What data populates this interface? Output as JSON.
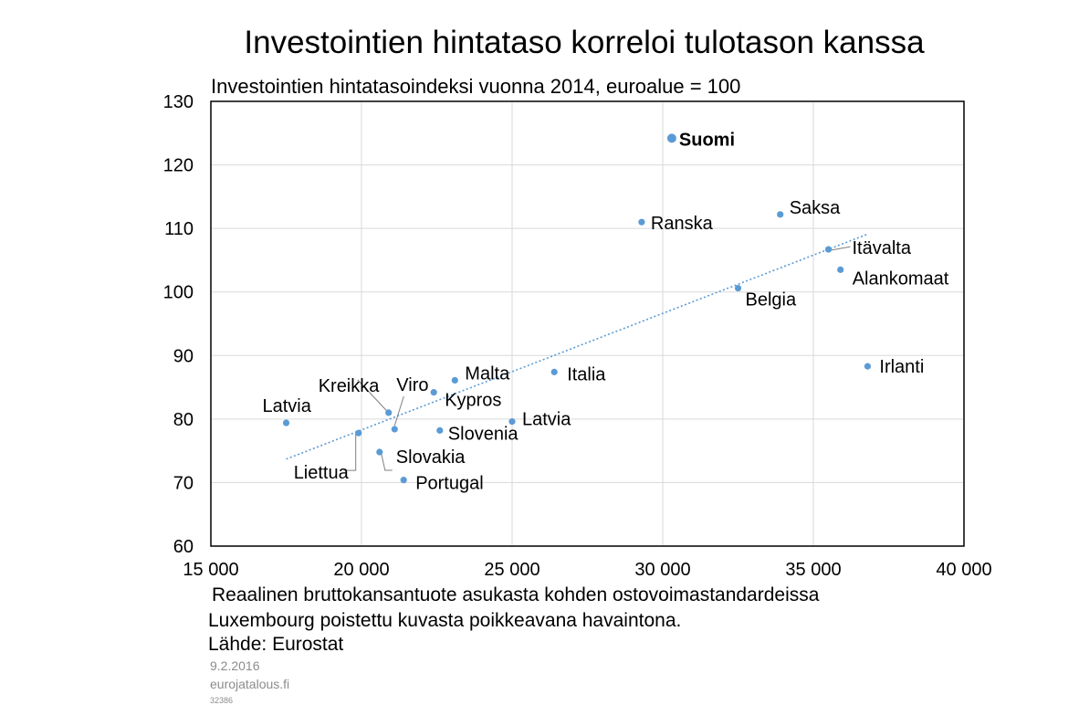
{
  "chart_data": {
    "type": "scatter",
    "title": "Investointien hintataso korreloi tulotason kanssa",
    "subtitle": "Investointien hintatasoindeksi vuonna 2014, euroalue = 100",
    "xlabel": "Reaalinen bruttokansantuote asukasta kohden ostovoimastandardeissa",
    "ylabel": "",
    "xlim": [
      15000,
      40000
    ],
    "ylim": [
      60,
      130
    ],
    "x_ticks": [
      15000,
      20000,
      25000,
      30000,
      35000,
      40000
    ],
    "x_tick_labels": [
      "15 000",
      "20 000",
      "25 000",
      "30 000",
      "35 000",
      "40 000"
    ],
    "y_ticks": [
      60,
      70,
      80,
      90,
      100,
      110,
      120,
      130
    ],
    "y_tick_labels": [
      "60",
      "70",
      "80",
      "90",
      "100",
      "110",
      "120",
      "130"
    ],
    "grid": true,
    "legend": "none",
    "point_color": "#5B9BD5",
    "trendline_color": "#5B9BD5",
    "points": [
      {
        "label": "Latvia",
        "x": 17500,
        "y": 79.4,
        "highlight": false
      },
      {
        "label": "Liettua",
        "x": 19900,
        "y": 77.8,
        "highlight": false
      },
      {
        "label": "Kreikka",
        "x": 20900,
        "y": 81.0,
        "highlight": false
      },
      {
        "label": "Viro",
        "x": 21100,
        "y": 78.4,
        "highlight": false
      },
      {
        "label": "Slovakia",
        "x": 20600,
        "y": 74.8,
        "highlight": false
      },
      {
        "label": "Portugal",
        "x": 21400,
        "y": 70.4,
        "highlight": false
      },
      {
        "label": "Kypros",
        "x": 22400,
        "y": 84.2,
        "highlight": false
      },
      {
        "label": "Malta",
        "x": 23100,
        "y": 86.1,
        "highlight": false
      },
      {
        "label": "Slovenia",
        "x": 22600,
        "y": 78.2,
        "highlight": false
      },
      {
        "label": "Latvia",
        "x": 25000,
        "y": 79.6,
        "highlight": false
      },
      {
        "label": "Italia",
        "x": 26400,
        "y": 87.4,
        "highlight": false
      },
      {
        "label": "Ranska",
        "x": 29300,
        "y": 111.0,
        "highlight": false
      },
      {
        "label": "Suomi",
        "x": 30300,
        "y": 124.2,
        "highlight": true
      },
      {
        "label": "Belgia",
        "x": 32500,
        "y": 100.6,
        "highlight": false
      },
      {
        "label": "Saksa",
        "x": 33900,
        "y": 112.2,
        "highlight": false
      },
      {
        "label": "Itävalta",
        "x": 35500,
        "y": 106.7,
        "highlight": false
      },
      {
        "label": "Alankomaat",
        "x": 35900,
        "y": 103.5,
        "highlight": false
      },
      {
        "label": "Irlanti",
        "x": 36800,
        "y": 88.3,
        "highlight": false
      }
    ],
    "trendline": {
      "x": [
        17500,
        36800
      ],
      "y": [
        73.7,
        109.1
      ]
    }
  },
  "notes": {
    "line1": "Luxembourg poistettu kuvasta poikkeavana havaintona.",
    "line2": "Lähde: Eurostat"
  },
  "footer": {
    "date": "9.2.2016",
    "site": "eurojatalous.fi",
    "code": "32386"
  }
}
